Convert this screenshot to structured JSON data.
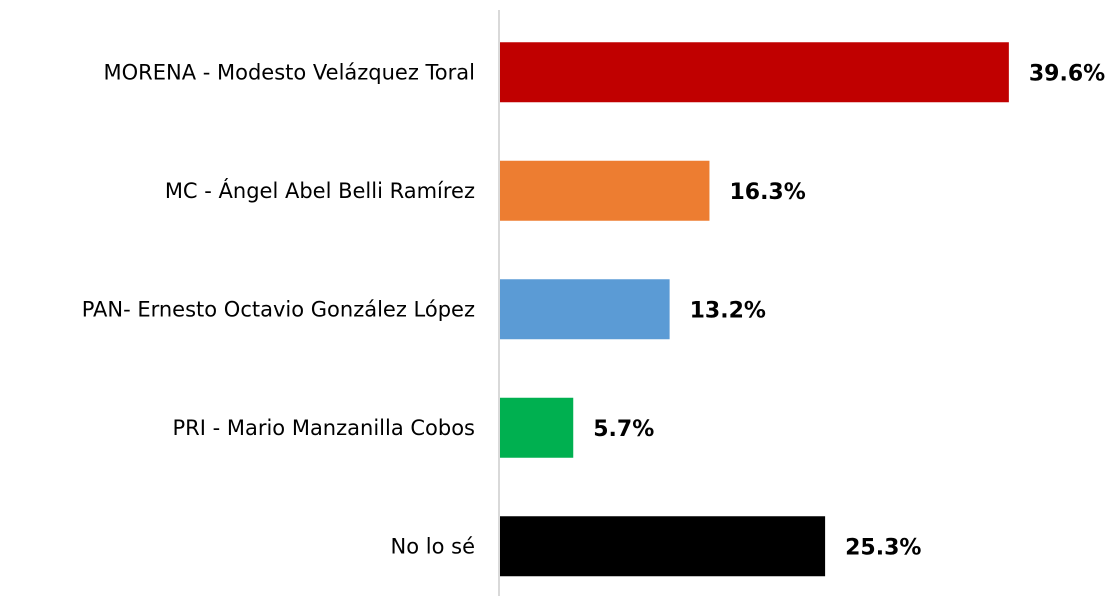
{
  "chart_data": {
    "type": "bar",
    "orientation": "horizontal",
    "categories": [
      "MORENA - Modesto Velázquez Toral",
      "MC - Ángel Abel Belli Ramírez",
      "PAN- Ernesto Octavio González López",
      "PRI - Mario Manzanilla Cobos",
      "No lo sé"
    ],
    "values": [
      39.6,
      16.3,
      13.2,
      5.7,
      25.3
    ],
    "value_labels": [
      "39.6%",
      "16.3%",
      "13.2%",
      "5.7%",
      "25.3%"
    ],
    "colors": [
      "#c00000",
      "#ed7d31",
      "#5b9bd5",
      "#00b050",
      "#000000"
    ]
  }
}
